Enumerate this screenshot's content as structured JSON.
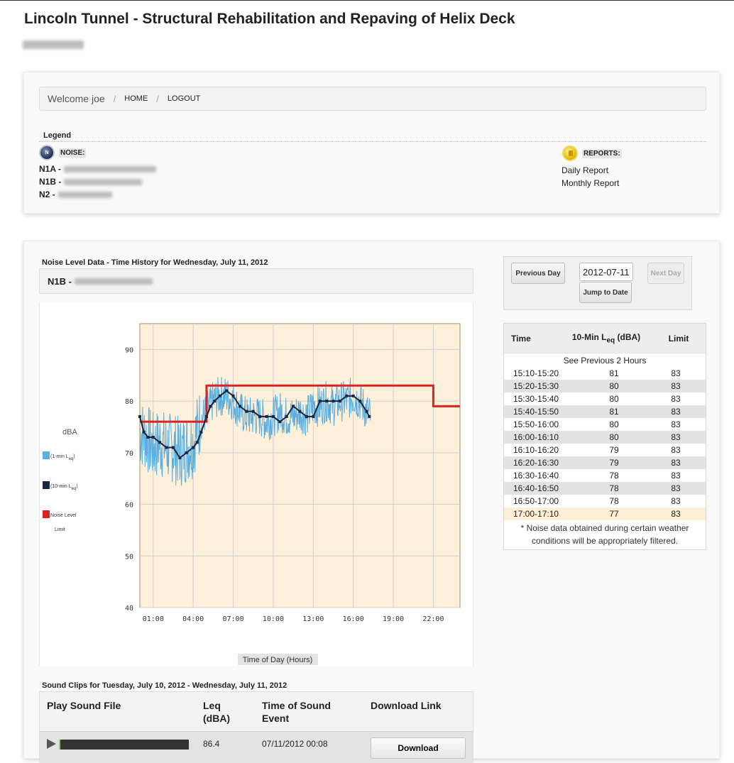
{
  "header": {
    "title": "Lincoln Tunnel - Structural Rehabilitation and Repaving of Helix Deck"
  },
  "nav": {
    "welcome": "Welcome joe",
    "home": "HOME",
    "logout": "LOGOUT"
  },
  "legend": {
    "title": "Legend",
    "noise_label": "NOISE:",
    "noise_icon_letter": "N",
    "locations": [
      "N1A -",
      "N1B -",
      "N2 -"
    ],
    "reports_label": "REPORTS:",
    "reports": [
      "Daily Report",
      "Monthly Report"
    ]
  },
  "noise_section": {
    "title": "Noise Level Data - Time History for Wednesday, July 11, 2012",
    "location": "N1B -"
  },
  "date_nav": {
    "previous_day": "Previous Day",
    "date_value": "2012-07-11",
    "next_day": "Next Day",
    "jump_to_date": "Jump to Date"
  },
  "leq_table": {
    "col_time": "Time",
    "col_leq": "10-Min L",
    "col_leq_sub": "eq",
    "col_leq_unit": "(dBA)",
    "col_limit": "Limit",
    "see_previous": "See Previous 2 Hours",
    "rows": [
      {
        "time": "15:10-15:20",
        "leq": "81",
        "limit": "83"
      },
      {
        "time": "15:20-15:30",
        "leq": "80",
        "limit": "83"
      },
      {
        "time": "15:30-15:40",
        "leq": "80",
        "limit": "83"
      },
      {
        "time": "15:40-15:50",
        "leq": "81",
        "limit": "83"
      },
      {
        "time": "15:50-16:00",
        "leq": "80",
        "limit": "83"
      },
      {
        "time": "16:00-16:10",
        "leq": "80",
        "limit": "83"
      },
      {
        "time": "16:10-16:20",
        "leq": "79",
        "limit": "83"
      },
      {
        "time": "16:20-16:30",
        "leq": "79",
        "limit": "83"
      },
      {
        "time": "16:30-16:40",
        "leq": "78",
        "limit": "83"
      },
      {
        "time": "16:40-16:50",
        "leq": "78",
        "limit": "83"
      },
      {
        "time": "16:50-17:00",
        "leq": "78",
        "limit": "83"
      },
      {
        "time": "17:00-17:10",
        "leq": "77",
        "limit": "83"
      }
    ],
    "note": "* Noise data obtained during certain weather conditions will be appropriately filtered."
  },
  "clips": {
    "title": "Sound Clips for Tuesday, July 10, 2012 - Wednesday, July 11, 2012",
    "col_play": "Play Sound File",
    "col_leq": "Leq",
    "col_leq_unit": "(dBA)",
    "col_time": "Time of Sound",
    "col_time2": "Event",
    "col_download": "Download Link",
    "rows": [
      {
        "leq": "86.4",
        "time": "07/11/2012 00:08",
        "download": "Download"
      }
    ]
  },
  "chart_data": {
    "type": "line",
    "xlabel": "Time of Day (Hours)",
    "ylabel": "dBA",
    "x_unit": "hours",
    "xlim": [
      0,
      24
    ],
    "ylim": [
      40,
      95
    ],
    "xticks": [
      1,
      4,
      7,
      10,
      13,
      16,
      19,
      22
    ],
    "xtick_labels": [
      "01:00",
      "04:00",
      "07:00",
      "10:00",
      "13:00",
      "16:00",
      "19:00",
      "22:00"
    ],
    "yticks": [
      40,
      50,
      60,
      70,
      80,
      90
    ],
    "grid": true,
    "legend_position": "left",
    "legend": [
      {
        "label": "(1-min L",
        "sub": "eq",
        "suffix": ")",
        "color": "#5aaee0"
      },
      {
        "label": "(10-min L",
        "sub": "eq",
        "suffix": ")",
        "color": "#1a2640"
      },
      {
        "label": "Noise Level",
        "label2": "Limit",
        "color": "#e02020"
      }
    ],
    "colors": {
      "background": "#fdf0da",
      "one_min": "#5aaee0",
      "ten_min": "#1a2640",
      "limit": "#dd2222"
    },
    "series": [
      {
        "name": "1-min Leq",
        "style": "noisy-band",
        "x": [
          0.0,
          0.5,
          1.0,
          1.5,
          2.0,
          2.5,
          3.0,
          3.5,
          4.0,
          4.5,
          5.0,
          5.5,
          6.0,
          6.5,
          7.0,
          7.5,
          8.0,
          8.5,
          9.0,
          9.5,
          10.0,
          10.5,
          11.0,
          11.5,
          12.0,
          12.5,
          13.0,
          13.5,
          14.0,
          14.5,
          15.0,
          15.5,
          16.0,
          16.5,
          17.0,
          17.3
        ],
        "y": [
          74,
          73,
          71,
          72,
          71,
          71,
          70,
          71,
          72,
          76,
          78,
          80,
          81,
          81,
          80,
          78,
          77,
          77,
          77,
          76,
          77,
          78,
          77,
          77,
          78,
          77,
          79,
          79,
          80,
          79,
          80,
          80,
          81,
          80,
          78,
          77
        ]
      },
      {
        "name": "10-min Leq",
        "x": [
          0.0,
          0.3,
          0.6,
          1.0,
          1.5,
          2.0,
          2.5,
          3.0,
          3.5,
          4.0,
          4.3,
          4.6,
          5.0,
          5.3,
          5.6,
          6.0,
          6.5,
          7.0,
          7.5,
          8.0,
          8.5,
          9.0,
          9.5,
          10.0,
          10.5,
          11.0,
          11.5,
          12.0,
          12.5,
          13.0,
          13.5,
          14.0,
          14.5,
          15.0,
          15.5,
          16.0,
          16.5,
          17.0,
          17.2
        ],
        "y": [
          77,
          74,
          73,
          73,
          72,
          71,
          71,
          69,
          70,
          71,
          72,
          74,
          77,
          79,
          80,
          81,
          82,
          81,
          79,
          78,
          78,
          77,
          77,
          77,
          76,
          77,
          79,
          78,
          77,
          77,
          80,
          80,
          80,
          80,
          81,
          81,
          80,
          78,
          77
        ]
      },
      {
        "name": "Noise Level Limit",
        "step": true,
        "x": [
          0,
          5,
          5,
          22,
          22,
          24
        ],
        "y": [
          76,
          76,
          83,
          83,
          79,
          79
        ]
      }
    ]
  }
}
